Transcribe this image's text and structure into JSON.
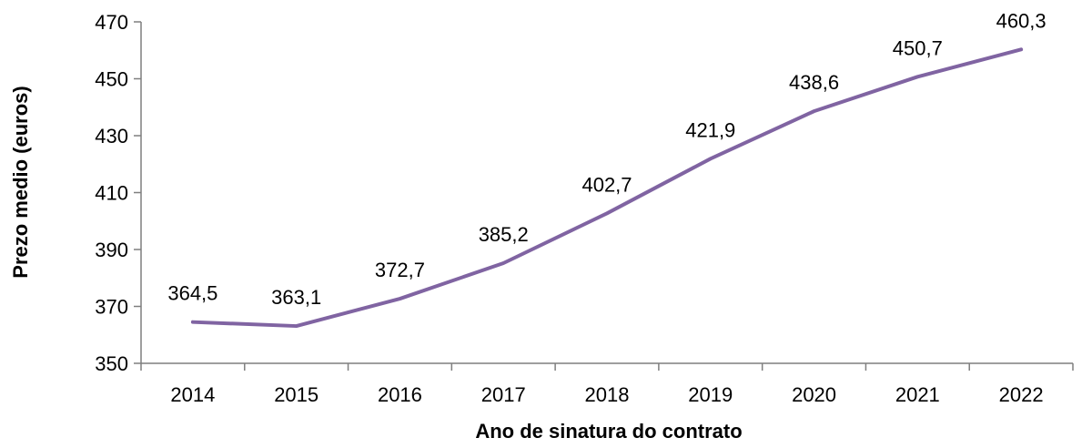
{
  "chart_data": {
    "type": "line",
    "title": "",
    "xlabel": "Ano de sinatura do contrato",
    "ylabel": "Prezo medio (euros)",
    "categories": [
      "2014",
      "2015",
      "2016",
      "2017",
      "2018",
      "2019",
      "2020",
      "2021",
      "2022"
    ],
    "series": [
      {
        "values": [
          364.5,
          363.1,
          372.7,
          385.2,
          402.7,
          421.9,
          438.6,
          450.7,
          460.3
        ],
        "labels": [
          "364,5",
          "363,1",
          "372,7",
          "385,2",
          "402,7",
          "421,9",
          "438,6",
          "450,7",
          "460,3"
        ],
        "color": "#8064a2"
      }
    ],
    "ylim": [
      350,
      470
    ],
    "yticks": [
      350,
      370,
      390,
      410,
      430,
      450,
      470
    ],
    "ytick_labels": [
      "350",
      "370",
      "390",
      "410",
      "430",
      "450",
      "470"
    ],
    "grid": false,
    "legend": "none"
  }
}
